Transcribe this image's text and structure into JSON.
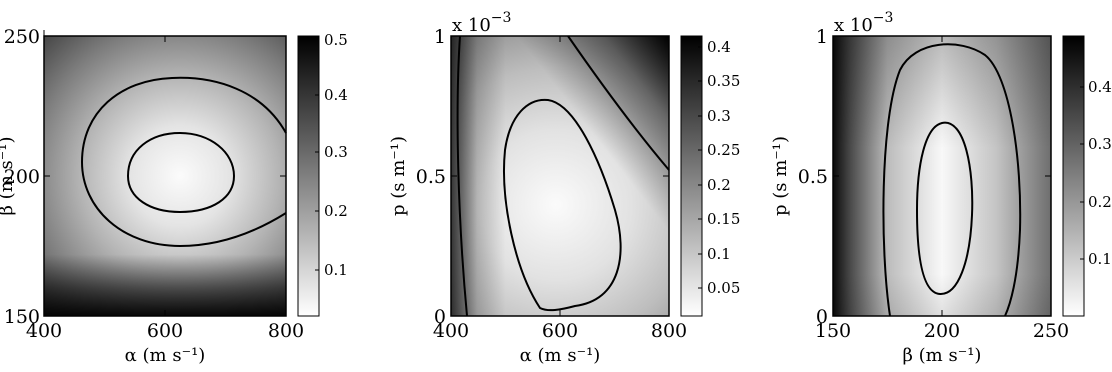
{
  "chart_data": [
    {
      "type": "heatmap",
      "title": "",
      "xlabel": "α (m s⁻¹)",
      "ylabel": "β (m s⁻¹)",
      "xlim": [
        400,
        800
      ],
      "ylim": [
        150,
        250
      ],
      "xticks": [
        "400",
        "600",
        "800"
      ],
      "yticks": [
        "150",
        "200",
        "250"
      ],
      "colorbar": {
        "ticks": [
          "0.1",
          "0.2",
          "0.3",
          "0.4",
          "0.5"
        ],
        "range": [
          0.02,
          0.5
        ],
        "colormap": "gray-reversed"
      },
      "minimum": {
        "x": 600,
        "y": 200,
        "value": 0.02
      },
      "contours": [
        {
          "level": 0.07,
          "x_extent": [
            510,
            705
          ],
          "y_extent": [
            177,
            216
          ]
        },
        {
          "level": 0.15,
          "x_extent": [
            425,
            800
          ],
          "y_extent": [
            160,
            236
          ]
        }
      ],
      "exponent_label": ""
    },
    {
      "type": "heatmap",
      "title": "",
      "xlabel": "α (m s⁻¹)",
      "ylabel": "p (s m⁻¹)",
      "xlim": [
        400,
        800
      ],
      "ylim": [
        0,
        0.001
      ],
      "xticks": [
        "400",
        "600",
        "800"
      ],
      "yticks": [
        "0",
        "0.5",
        "1"
      ],
      "colorbar": {
        "ticks": [
          "0.05",
          "0.1",
          "0.15",
          "0.2",
          "0.25",
          "0.3",
          "0.35",
          "0.4"
        ],
        "range": [
          0.01,
          0.41
        ],
        "colormap": "gray-reversed"
      },
      "minimum": {
        "x": 600,
        "y": 0.0004,
        "value": 0.01
      },
      "contours": [
        {
          "level": 0.1,
          "x_extent": [
            520,
            715
          ],
          "y_extent": [
            3e-05,
            0.00075
          ]
        },
        {
          "level": 0.25,
          "description": "lines across corners"
        }
      ],
      "exponent_label": "x 10"
    },
    {
      "type": "heatmap",
      "title": "",
      "xlabel": "β (m s⁻¹)",
      "ylabel": "p (s m⁻¹)",
      "xlim": [
        150,
        250
      ],
      "ylim": [
        0,
        0.001
      ],
      "xticks": [
        "150",
        "200",
        "250"
      ],
      "yticks": [
        "0",
        "0.5",
        "1"
      ],
      "colorbar": {
        "ticks": [
          "0.1",
          "0.2",
          "0.3",
          "0.4"
        ],
        "range": [
          0.02,
          0.46
        ],
        "colormap": "gray-reversed"
      },
      "minimum": {
        "x": 200,
        "y": 0.0004,
        "value": 0.02
      },
      "contours": [
        {
          "level": 0.07,
          "x_extent": [
            186,
            214
          ],
          "y_extent": [
            8e-05,
            0.0007
          ]
        },
        {
          "level": 0.15,
          "x_extent": [
            175,
            238
          ],
          "y_extent": [
            1e-05,
            0.00095
          ]
        }
      ],
      "exponent_label": "x 10"
    }
  ],
  "exponent_power": "−3"
}
